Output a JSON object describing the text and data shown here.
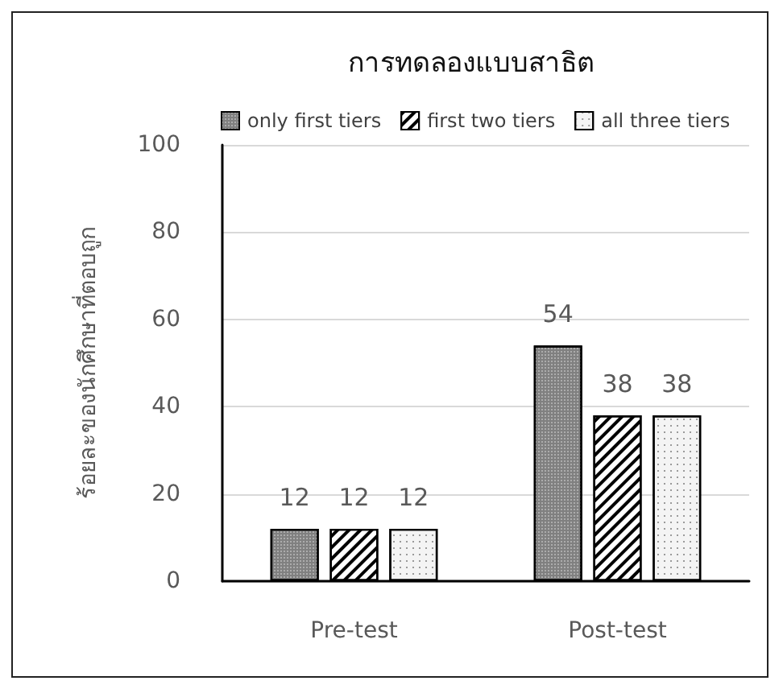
{
  "chart_data": {
    "type": "bar",
    "title": "การทดลองแบบสาธิต",
    "ylabel": "ร้อยละของนักศึกษาที่ตอบถูก",
    "categories": [
      "Pre-test",
      "Post-test"
    ],
    "series": [
      {
        "name": "only first tiers",
        "color": "#808080",
        "values": [
          12,
          54
        ]
      },
      {
        "name": "first two tiers",
        "color": "#ffffff",
        "values": [
          12,
          38
        ]
      },
      {
        "name": "all three tiers",
        "color": "#f4f4f4",
        "values": [
          12,
          38
        ]
      }
    ],
    "ylim": [
      0,
      100
    ],
    "yticks": [
      0,
      20,
      40,
      60,
      80,
      100
    ],
    "grid": "y",
    "legend": "top",
    "data_labels": true
  }
}
